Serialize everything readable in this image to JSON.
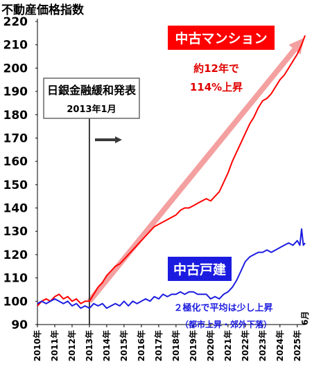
{
  "chart_data": {
    "type": "line",
    "title": "不動産価格指数",
    "ylim": [
      90,
      220
    ],
    "yticks": [
      90,
      100,
      110,
      120,
      130,
      140,
      150,
      160,
      170,
      180,
      190,
      200,
      210,
      220
    ],
    "xlim": [
      2010.0,
      2025.45
    ],
    "xticks": [
      "2010年",
      "2011年",
      "2012年",
      "2013年",
      "2014年",
      "2015年",
      "2016年",
      "2017年",
      "2018年",
      "2019年",
      "2020年",
      "2021年",
      "2022年",
      "2023年",
      "2024年",
      "2025年"
    ],
    "x_end_label": "6月",
    "grid": false,
    "series": [
      {
        "name": "中古マンション",
        "color": "#ff0000",
        "points": [
          [
            2010.0,
            98
          ],
          [
            2010.25,
            100
          ],
          [
            2010.5,
            101
          ],
          [
            2010.75,
            100
          ],
          [
            2011.0,
            102
          ],
          [
            2011.25,
            103
          ],
          [
            2011.5,
            101
          ],
          [
            2011.75,
            102
          ],
          [
            2012.0,
            100
          ],
          [
            2012.25,
            101
          ],
          [
            2012.5,
            99
          ],
          [
            2012.75,
            100
          ],
          [
            2013.0,
            100
          ],
          [
            2013.25,
            103
          ],
          [
            2013.5,
            106
          ],
          [
            2013.75,
            108
          ],
          [
            2014.0,
            111
          ],
          [
            2014.25,
            113
          ],
          [
            2014.5,
            115
          ],
          [
            2014.75,
            116
          ],
          [
            2015.0,
            118
          ],
          [
            2015.25,
            120
          ],
          [
            2015.5,
            122
          ],
          [
            2015.75,
            124
          ],
          [
            2016.0,
            126
          ],
          [
            2016.25,
            128
          ],
          [
            2016.5,
            130
          ],
          [
            2016.75,
            132
          ],
          [
            2017.0,
            133
          ],
          [
            2017.25,
            134
          ],
          [
            2017.5,
            135
          ],
          [
            2017.75,
            136
          ],
          [
            2018.0,
            137
          ],
          [
            2018.25,
            139
          ],
          [
            2018.5,
            140
          ],
          [
            2018.75,
            140
          ],
          [
            2019.0,
            141
          ],
          [
            2019.25,
            142
          ],
          [
            2019.5,
            143
          ],
          [
            2019.75,
            144
          ],
          [
            2020.0,
            143
          ],
          [
            2020.25,
            145
          ],
          [
            2020.5,
            147
          ],
          [
            2020.75,
            151
          ],
          [
            2021.0,
            155
          ],
          [
            2021.25,
            160
          ],
          [
            2021.5,
            164
          ],
          [
            2021.75,
            168
          ],
          [
            2022.0,
            172
          ],
          [
            2022.25,
            176
          ],
          [
            2022.5,
            179
          ],
          [
            2022.75,
            183
          ],
          [
            2023.0,
            186
          ],
          [
            2023.25,
            187
          ],
          [
            2023.5,
            189
          ],
          [
            2023.75,
            192
          ],
          [
            2024.0,
            195
          ],
          [
            2024.25,
            197
          ],
          [
            2024.5,
            200
          ],
          [
            2024.75,
            203
          ],
          [
            2025.0,
            206
          ],
          [
            2025.25,
            210
          ],
          [
            2025.45,
            214
          ]
        ]
      },
      {
        "name": "中古戸建",
        "color": "#1c1ce0",
        "points": [
          [
            2010.0,
            99
          ],
          [
            2010.25,
            100
          ],
          [
            2010.5,
            99
          ],
          [
            2010.75,
            100
          ],
          [
            2011.0,
            101
          ],
          [
            2011.25,
            100
          ],
          [
            2011.5,
            99
          ],
          [
            2011.75,
            100
          ],
          [
            2012.0,
            98
          ],
          [
            2012.25,
            99
          ],
          [
            2012.5,
            97
          ],
          [
            2012.75,
            98
          ],
          [
            2013.0,
            97
          ],
          [
            2013.25,
            99
          ],
          [
            2013.5,
            98
          ],
          [
            2013.75,
            99
          ],
          [
            2014.0,
            97
          ],
          [
            2014.25,
            98
          ],
          [
            2014.5,
            99
          ],
          [
            2014.75,
            98
          ],
          [
            2015.0,
            100
          ],
          [
            2015.25,
            98
          ],
          [
            2015.5,
            100
          ],
          [
            2015.75,
            99
          ],
          [
            2016.0,
            100
          ],
          [
            2016.25,
            101
          ],
          [
            2016.5,
            100
          ],
          [
            2016.75,
            102
          ],
          [
            2017.0,
            101
          ],
          [
            2017.25,
            103
          ],
          [
            2017.5,
            102
          ],
          [
            2017.75,
            103
          ],
          [
            2018.0,
            103
          ],
          [
            2018.25,
            104
          ],
          [
            2018.5,
            103
          ],
          [
            2018.75,
            104
          ],
          [
            2019.0,
            104
          ],
          [
            2019.25,
            103
          ],
          [
            2019.5,
            103
          ],
          [
            2019.75,
            103
          ],
          [
            2020.0,
            101
          ],
          [
            2020.25,
            102
          ],
          [
            2020.5,
            101
          ],
          [
            2020.75,
            103
          ],
          [
            2021.0,
            104
          ],
          [
            2021.25,
            106
          ],
          [
            2021.5,
            109
          ],
          [
            2021.75,
            113
          ],
          [
            2022.0,
            117
          ],
          [
            2022.25,
            119
          ],
          [
            2022.5,
            120
          ],
          [
            2022.75,
            121
          ],
          [
            2023.0,
            121
          ],
          [
            2023.25,
            122
          ],
          [
            2023.5,
            121
          ],
          [
            2023.75,
            122
          ],
          [
            2024.0,
            123
          ],
          [
            2024.25,
            124
          ],
          [
            2024.5,
            125
          ],
          [
            2024.75,
            124
          ],
          [
            2025.0,
            126
          ],
          [
            2025.15,
            124
          ],
          [
            2025.25,
            131
          ],
          [
            2025.35,
            124
          ],
          [
            2025.45,
            125
          ]
        ]
      }
    ],
    "annotations": {
      "event_box_line1": "日銀金融緩和発表",
      "event_box_line2": "2013年1月",
      "event_x": 2013.0,
      "mansion_label": "中古マンション",
      "mansion_note_1": "約12年で",
      "mansion_note_2": "114%上昇",
      "house_label": "中古戸建",
      "house_note_1": "２極化で平均は少し上昇",
      "house_note_2": "（都市上昇・郊外下落）",
      "trend_arrow": {
        "from": [
          2013.0,
          100
        ],
        "to": [
          2025.4,
          213
        ]
      }
    }
  }
}
